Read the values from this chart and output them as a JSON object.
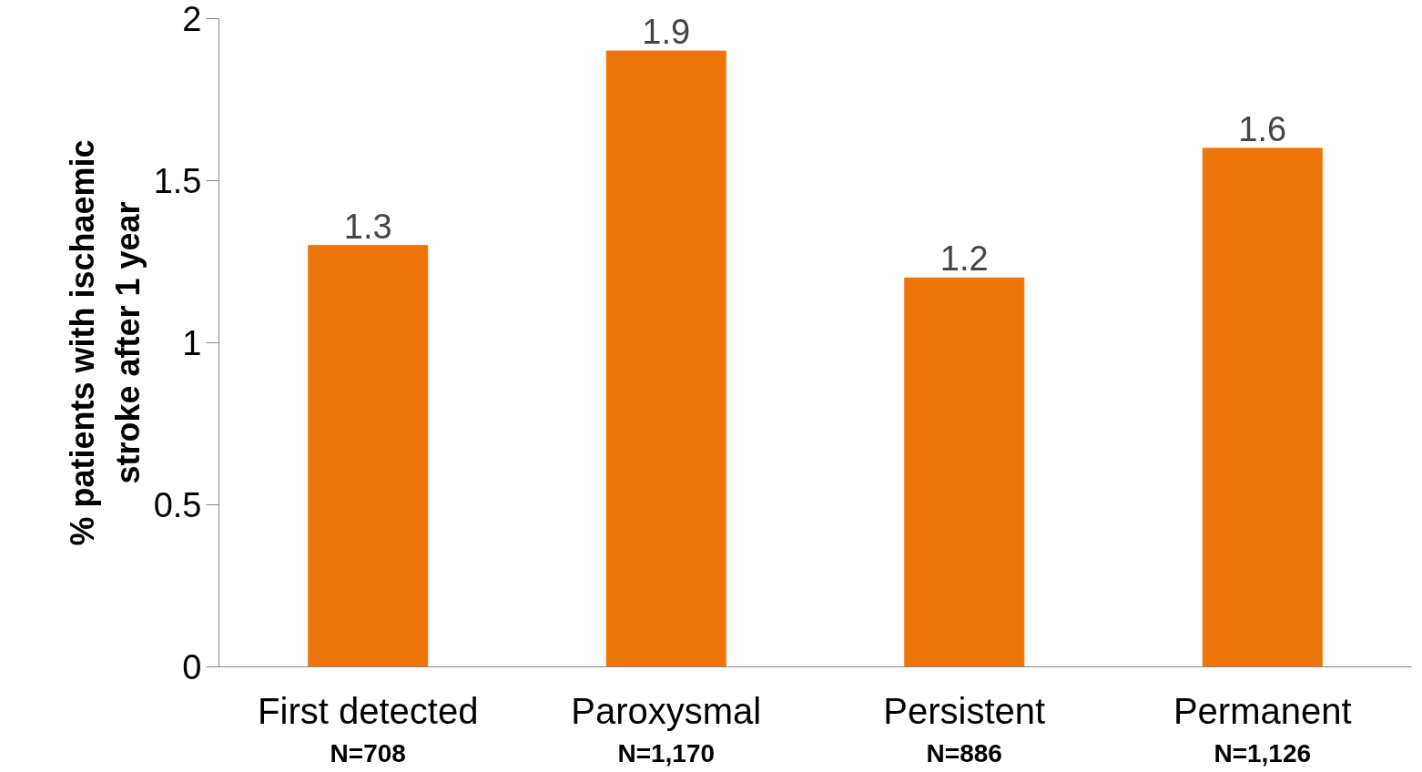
{
  "chart_data": {
    "type": "bar",
    "ylabel": "% patients with ischaemic\nstroke after 1 year",
    "categories": [
      "First detected",
      "Paroxysmal",
      "Persistent",
      "Permanent"
    ],
    "values": [
      1.3,
      1.9,
      1.2,
      1.6
    ],
    "color": "#ed7406",
    "ylim": [
      0,
      2
    ],
    "yticks": [
      0,
      0.5,
      1,
      1.5,
      2
    ],
    "grid": false,
    "data_labels": true,
    "annotations": [
      "N=708",
      "N=1,170",
      "N=886",
      "N=1,126"
    ]
  }
}
